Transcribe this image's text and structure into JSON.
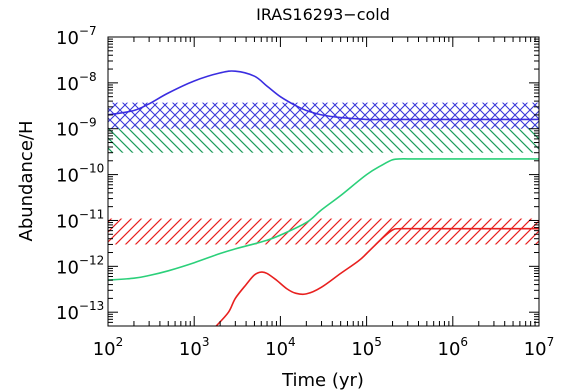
{
  "chart_data": {
    "type": "line",
    "title": "IRAS16293−cold",
    "xlabel": "Time (yr)",
    "ylabel": "Abundance/H",
    "xscale": "log",
    "yscale": "log",
    "xlim": [
      100,
      10000000
    ],
    "ylim": [
      5e-14,
      1e-07
    ],
    "grid": false,
    "xticks": [
      {
        "base": "10",
        "exp": "2",
        "value": 100
      },
      {
        "base": "10",
        "exp": "3",
        "value": 1000
      },
      {
        "base": "10",
        "exp": "4",
        "value": 10000
      },
      {
        "base": "10",
        "exp": "5",
        "value": 100000
      },
      {
        "base": "10",
        "exp": "6",
        "value": 1000000
      },
      {
        "base": "10",
        "exp": "7",
        "value": 10000000
      }
    ],
    "yticks": [
      {
        "base": "10",
        "exp": "−13",
        "value": 1e-13
      },
      {
        "base": "10",
        "exp": "−12",
        "value": 1e-12
      },
      {
        "base": "10",
        "exp": "−11",
        "value": 1e-11
      },
      {
        "base": "10",
        "exp": "−10",
        "value": 1e-10
      },
      {
        "base": "10",
        "exp": "−9",
        "value": 1e-09
      },
      {
        "base": "10",
        "exp": "−8",
        "value": 1e-08
      },
      {
        "base": "10",
        "exp": "−7",
        "value": 1e-07
      }
    ],
    "bands": [
      {
        "color": "#1a9a5a",
        "ymin": 3e-10,
        "ymax": 1.2e-09,
        "hatch": "backslash"
      },
      {
        "color": "#3a3ad8",
        "ymin": 1e-09,
        "ymax": 3.7e-09,
        "hatch": "cross"
      },
      {
        "color": "#e8201f",
        "ymin": 3e-12,
        "ymax": 1.1e-11,
        "hatch": "slash"
      }
    ],
    "series": [
      {
        "color": "#3a2de0",
        "x": [
          100,
          200,
          300,
          500,
          1000,
          2000,
          3000,
          5000,
          7000,
          10000,
          15000,
          20000,
          30000,
          50000,
          100000,
          200000,
          500000,
          1000000,
          10000000
        ],
        "y": [
          2e-09,
          2.5e-09,
          3.5e-09,
          6e-09,
          1.1e-08,
          1.65e-08,
          1.8e-08,
          1.4e-08,
          8.5e-09,
          5e-09,
          3.2e-09,
          2.5e-09,
          2e-09,
          1.75e-09,
          1.6e-09,
          1.6e-09,
          1.6e-09,
          1.6e-09,
          1.6e-09
        ]
      },
      {
        "color": "#2bd07a",
        "x": [
          100,
          200,
          300,
          500,
          1000,
          2000,
          3000,
          5000,
          7000,
          10000,
          20000,
          30000,
          50000,
          100000,
          150000,
          200000,
          250000,
          300000,
          500000,
          1000000,
          10000000
        ],
        "y": [
          5e-13,
          5.5e-13,
          6.3e-13,
          8e-13,
          1.2e-12,
          1.9e-12,
          2.4e-12,
          3.1e-12,
          3.7e-12,
          4.8e-12,
          9e-12,
          1.7e-11,
          3.5e-11,
          1e-10,
          1.6e-10,
          2.1e-10,
          2.2e-10,
          2.2e-10,
          2.2e-10,
          2.2e-10,
          2.2e-10
        ]
      },
      {
        "color": "#e8201f",
        "x": [
          1800,
          2500,
          3000,
          4000,
          5000,
          6000,
          7000,
          9000,
          12000,
          15000,
          20000,
          30000,
          50000,
          80000,
          100000,
          150000,
          200000,
          250000,
          500000,
          1000000,
          10000000
        ],
        "y": [
          5e-14,
          1e-13,
          2e-13,
          4e-13,
          6.5e-13,
          7.5e-13,
          7e-13,
          5e-13,
          3.2e-13,
          2.6e-13,
          2.5e-13,
          3.5e-13,
          7e-13,
          1.3e-12,
          1.9e-12,
          4e-12,
          6.2e-12,
          6.6e-12,
          6.6e-12,
          6.6e-12,
          6.6e-12
        ]
      }
    ]
  }
}
